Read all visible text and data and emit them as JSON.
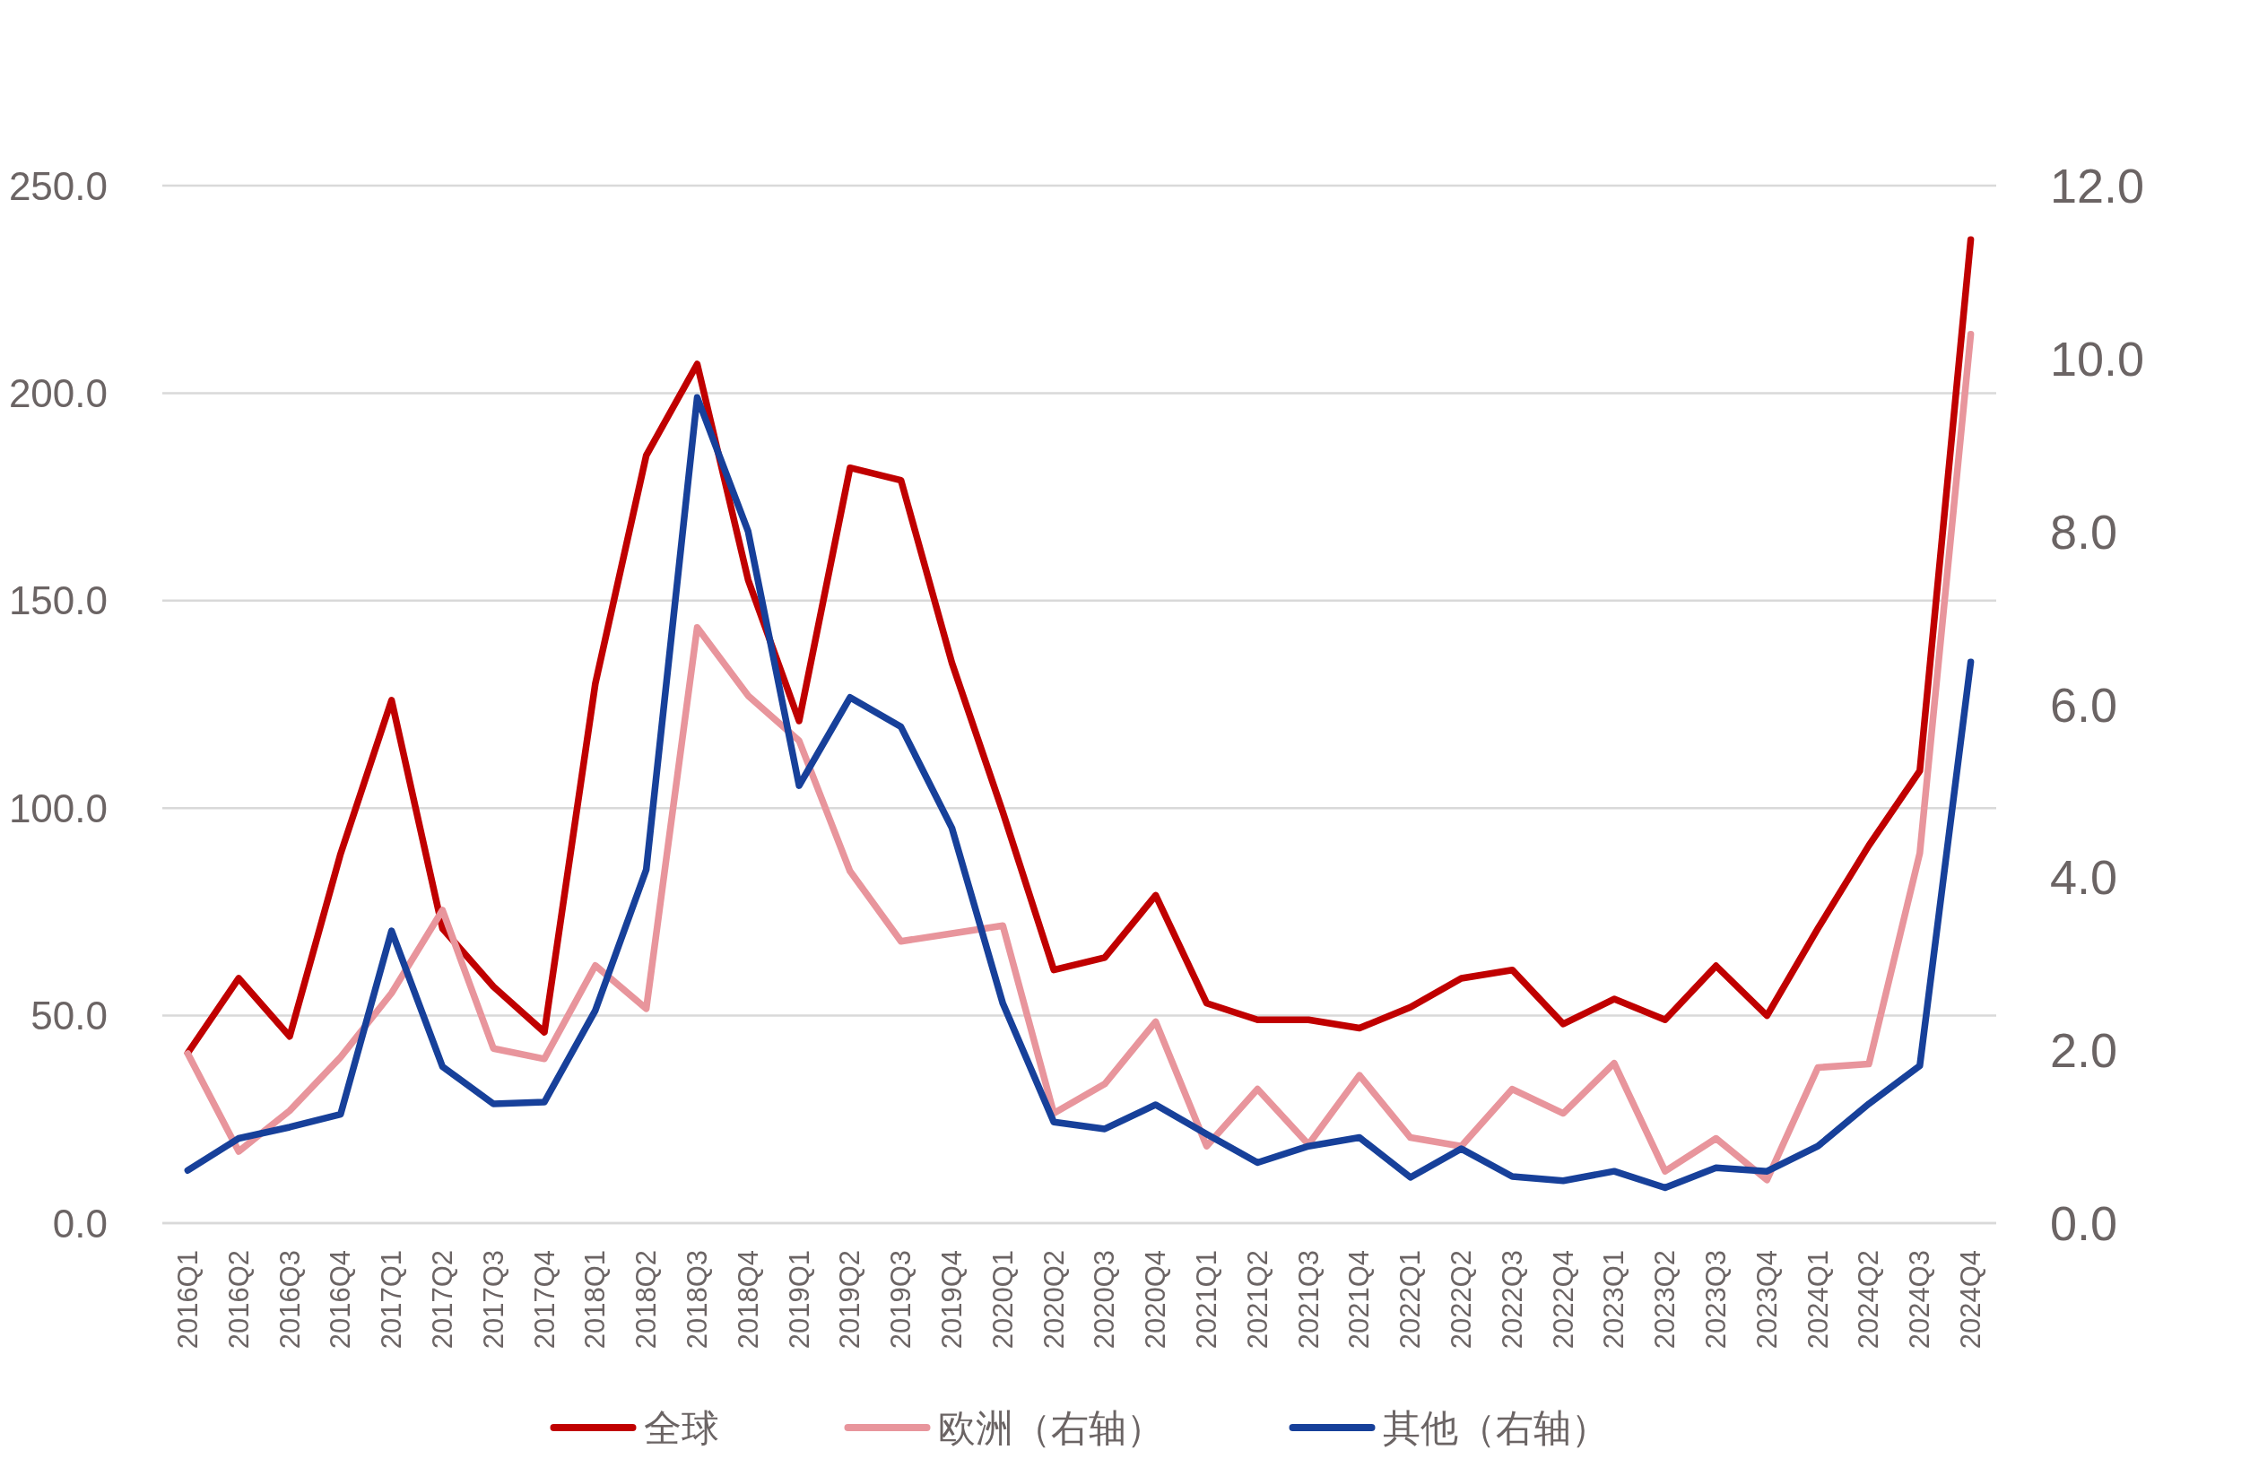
{
  "chart_data": {
    "type": "line",
    "categories": [
      "2016Q1",
      "2016Q2",
      "2016Q3",
      "2016Q4",
      "2017Q1",
      "2017Q2",
      "2017Q3",
      "2017Q4",
      "2018Q1",
      "2018Q2",
      "2018Q3",
      "2018Q4",
      "2019Q1",
      "2019Q2",
      "2019Q3",
      "2019Q4",
      "2020Q1",
      "2020Q2",
      "2020Q3",
      "2020Q4",
      "2021Q1",
      "2021Q2",
      "2021Q3",
      "2021Q4",
      "2022Q1",
      "2022Q2",
      "2022Q3",
      "2022Q4",
      "2023Q1",
      "2023Q2",
      "2023Q3",
      "2023Q4",
      "2024Q1",
      "2024Q2",
      "2024Q3",
      "2024Q4"
    ],
    "ylim": [
      0,
      250
    ],
    "yticks": [
      {
        "value": 0,
        "label": "0.0"
      },
      {
        "value": 50,
        "label": "50.0"
      },
      {
        "value": 100,
        "label": "100.0"
      },
      {
        "value": 150,
        "label": "150.0"
      },
      {
        "value": 200,
        "label": "200.0"
      },
      {
        "value": 250,
        "label": "250.0"
      }
    ],
    "y2lim": [
      0,
      12
    ],
    "y2ticks": [
      {
        "value": 0,
        "label": "0.0"
      },
      {
        "value": 2,
        "label": "2.0"
      },
      {
        "value": 4,
        "label": "4.0"
      },
      {
        "value": 6,
        "label": "6.0"
      },
      {
        "value": 8,
        "label": "8.0"
      },
      {
        "value": 10,
        "label": "10.0"
      },
      {
        "value": 12,
        "label": "12.0"
      }
    ],
    "grid": "y",
    "legend": "bottom",
    "series": [
      {
        "name": "全球",
        "color": "#c00000",
        "values": [
          41,
          59,
          45,
          89,
          126,
          71,
          57,
          46,
          130,
          185,
          207,
          155,
          121,
          182,
          179,
          135,
          99,
          61,
          64,
          79,
          53,
          49,
          49,
          47,
          52,
          59,
          61,
          48,
          54,
          49,
          62,
          50,
          71,
          91,
          109,
          237
        ]
      },
      {
        "name": "欧洲（右轴）",
        "color": "#e8959c",
        "axis": "y2",
        "values": [
          1.96,
          0.83,
          1.3,
          1.92,
          2.66,
          3.62,
          2.02,
          1.9,
          2.98,
          2.48,
          6.89,
          6.1,
          5.58,
          4.07,
          3.26,
          3.35,
          3.44,
          1.27,
          1.61,
          2.33,
          0.89,
          1.55,
          0.91,
          1.71,
          0.99,
          0.89,
          1.55,
          1.27,
          1.85,
          0.6,
          0.98,
          0.5,
          1.8,
          1.84,
          4.28,
          10.28
        ]
      },
      {
        "name": "其他（右轴）",
        "color": "#17409a",
        "axis": "y2",
        "values": [
          0.61,
          0.98,
          1.11,
          1.26,
          3.38,
          1.81,
          1.38,
          1.4,
          2.46,
          4.09,
          9.55,
          8.0,
          5.06,
          6.08,
          5.74,
          4.57,
          2.54,
          1.17,
          1.09,
          1.37,
          1.03,
          0.7,
          0.89,
          0.99,
          0.53,
          0.86,
          0.54,
          0.49,
          0.6,
          0.41,
          0.64,
          0.6,
          0.89,
          1.38,
          1.82,
          6.49
        ]
      }
    ]
  }
}
